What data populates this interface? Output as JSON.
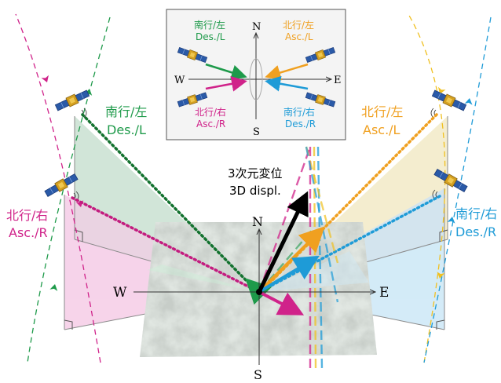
{
  "colors": {
    "descending_left": "#1e9a4a",
    "ascending_right": "#d0238a",
    "ascending_left": "#f0a020",
    "descending_right": "#1e9bd7",
    "displacement": "#000000",
    "frame": "#8a8a8a"
  },
  "labels": {
    "left_upper_jp": "南行/左",
    "left_upper_en": "Des./L",
    "left_lower_jp": "北行/右",
    "left_lower_en": "Asc./R",
    "right_upper_jp": "北行/左",
    "right_upper_en": "Asc./L",
    "right_lower_jp": "南行/右",
    "right_lower_en": "Des./R",
    "displacement_jp": "3次元変位",
    "displacement_en": "3D displ.",
    "north": "N",
    "south": "S",
    "east": "E",
    "west": "W"
  },
  "inset": {
    "top_left_jp": "南行/左",
    "top_left_en": "Des./L",
    "top_right_jp": "北行/左",
    "top_right_en": "Asc./L",
    "bottom_left_jp": "北行/右",
    "bottom_left_en": "Asc./R",
    "bottom_right_jp": "南行/右",
    "bottom_right_en": "Des./R",
    "north": "N",
    "south": "S",
    "east": "E",
    "west": "W"
  },
  "icons": [
    "satellite-icon",
    "right-angle-marker-icon",
    "signal-wave-icon"
  ]
}
